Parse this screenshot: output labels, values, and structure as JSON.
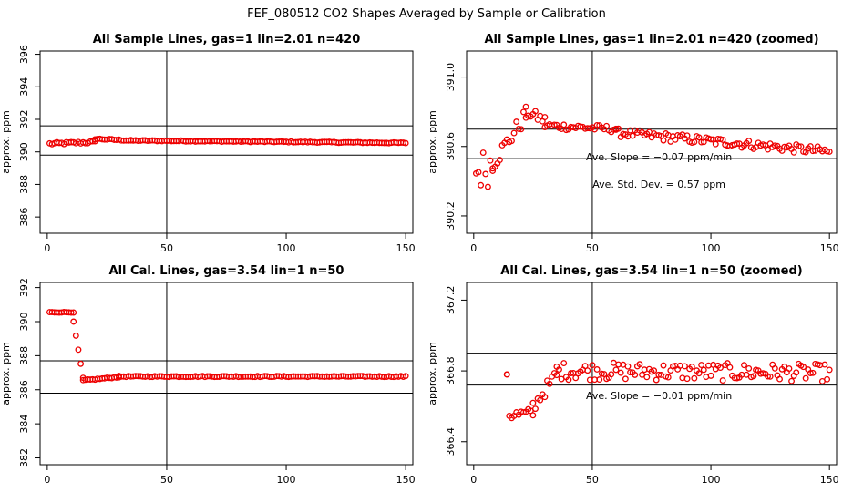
{
  "figure_title": "FEF_080512  CO2 Shapes Averaged by Sample or Calibration",
  "point_color": "#ee0000",
  "chart_data": [
    {
      "type": "scatter",
      "title": "All Sample Lines, gas=1 lin=2.01 n=420",
      "ylabel": "approx. ppm",
      "xlim": [
        -3,
        153
      ],
      "ylim": [
        385.0,
        396.2
      ],
      "xticks": [
        0,
        50,
        100,
        150
      ],
      "yticks": [
        386,
        388,
        390,
        392,
        394,
        396
      ],
      "hlines": [
        391.6,
        389.8
      ],
      "vline": 50,
      "annotations": [],
      "series_segments": [
        {
          "x_start": 1,
          "x_end": 20,
          "y_start": 390.5,
          "y_end": 390.6,
          "noise": 0.08
        },
        {
          "x_start": 20,
          "x_end": 35,
          "y_start": 390.8,
          "y_end": 390.7,
          "noise": 0.04
        },
        {
          "x_start": 35,
          "x_end": 150,
          "y_start": 390.7,
          "y_end": 390.55,
          "noise": 0.03
        }
      ]
    },
    {
      "type": "scatter",
      "title": "All Sample Lines, gas=1 lin=2.01 n=420 (zoomed)",
      "ylabel": "approx. ppm",
      "xlim": [
        -3,
        153
      ],
      "ylim": [
        390.1,
        391.15
      ],
      "xticks": [
        0,
        50,
        100,
        150
      ],
      "yticks": [
        390.2,
        390.6,
        391.0
      ],
      "hlines": [
        390.7,
        390.53
      ],
      "vline": 50,
      "annotations": [
        "Ave. Slope = −0.07  ppm/min",
        "Ave. Std. Dev. = 0.57  ppm"
      ],
      "series_segments": [
        {
          "x_start": 1,
          "x_end": 8,
          "y_start": 390.45,
          "y_end": 390.5,
          "noise": 0.12
        },
        {
          "x_start": 8,
          "x_end": 22,
          "y_start": 390.5,
          "y_end": 390.78,
          "noise": 0.05
        },
        {
          "x_start": 22,
          "x_end": 30,
          "y_start": 390.8,
          "y_end": 390.75,
          "noise": 0.03
        },
        {
          "x_start": 30,
          "x_end": 60,
          "y_start": 390.72,
          "y_end": 390.7,
          "noise": 0.02
        },
        {
          "x_start": 60,
          "x_end": 150,
          "y_start": 390.68,
          "y_end": 390.57,
          "noise": 0.025
        }
      ]
    },
    {
      "type": "scatter",
      "title": "All Cal. Lines, gas=3.54 lin=1 n=50",
      "ylabel": "approx. ppm",
      "xlim": [
        -3,
        153
      ],
      "ylim": [
        381.6,
        392.3
      ],
      "xticks": [
        0,
        50,
        100,
        150
      ],
      "yticks": [
        382,
        384,
        386,
        388,
        390,
        392
      ],
      "hlines": [
        387.7,
        385.8
      ],
      "vline": 50,
      "annotations": [],
      "series_segments": [
        {
          "x_start": 1,
          "x_end": 11,
          "y_start": 390.55,
          "y_end": 390.55,
          "noise": 0.02
        },
        {
          "x_start": 11,
          "x_end": 15,
          "y_start": 390.0,
          "y_end": 386.7,
          "noise": 0.0
        },
        {
          "x_start": 15,
          "x_end": 30,
          "y_start": 386.55,
          "y_end": 386.75,
          "noise": 0.03
        },
        {
          "x_start": 30,
          "x_end": 150,
          "y_start": 386.78,
          "y_end": 386.78,
          "noise": 0.03
        }
      ]
    },
    {
      "type": "scatter",
      "title": "All Cal. Lines, gas=3.54 lin=1 n=50 (zoomed)",
      "ylabel": "approx. ppm",
      "xlim": [
        -3,
        153
      ],
      "ylim": [
        366.27,
        367.3
      ],
      "xticks": [
        0,
        50,
        100,
        150
      ],
      "yticks": [
        366.4,
        366.8,
        367.2
      ],
      "hlines": [
        366.9,
        366.72
      ],
      "vline": 50,
      "annotations": [
        "Ave. Slope = −0.01  ppm/min"
      ],
      "series_segments": [
        {
          "x_start": 14,
          "x_end": 14,
          "y_start": 366.78,
          "y_end": 366.78,
          "noise": 0.0
        },
        {
          "x_start": 15,
          "x_end": 25,
          "y_start": 366.55,
          "y_end": 366.56,
          "noise": 0.03
        },
        {
          "x_start": 25,
          "x_end": 35,
          "y_start": 366.6,
          "y_end": 366.78,
          "noise": 0.04
        },
        {
          "x_start": 35,
          "x_end": 150,
          "y_start": 366.8,
          "y_end": 366.79,
          "noise": 0.05
        }
      ]
    }
  ]
}
